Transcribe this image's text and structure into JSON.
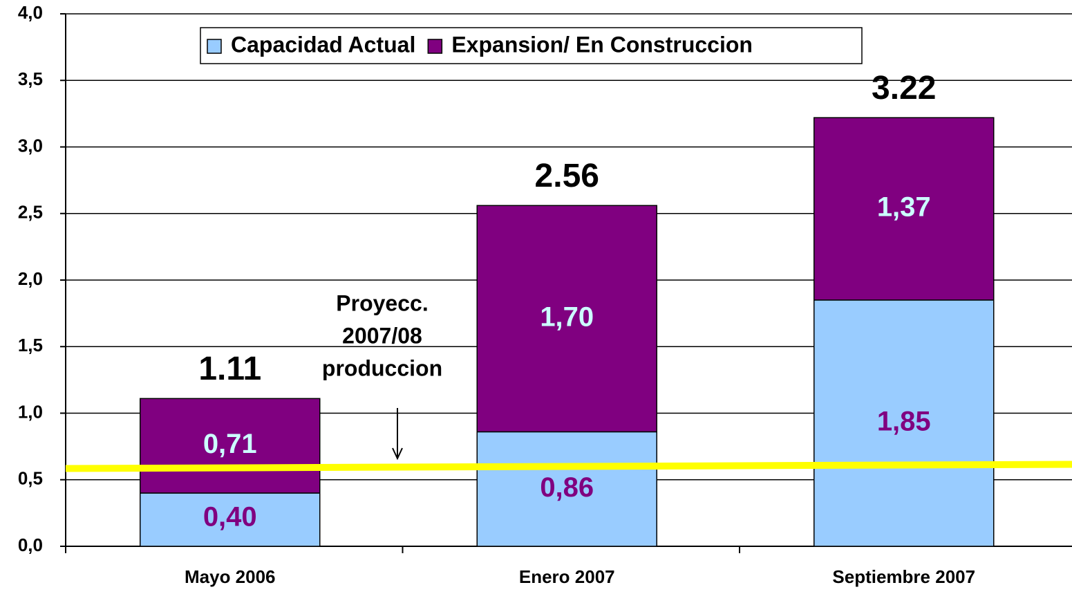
{
  "chart_data": {
    "type": "stacked_bar",
    "categories": [
      "Mayo 2006",
      "Enero 2007",
      "Septiembre 2007"
    ],
    "series": [
      {
        "name": "Capacidad Actual",
        "color": "#99ccff",
        "label_color": "#800080",
        "values": [
          0.4,
          0.86,
          1.85
        ],
        "value_labels": [
          "0,40",
          "0,86",
          "1,85"
        ]
      },
      {
        "name": "Expansion/ En Construccion",
        "color": "#800080",
        "label_color": "#ccffff",
        "values": [
          0.71,
          1.7,
          1.37
        ],
        "value_labels": [
          "0,71",
          "1,70",
          "1,37"
        ]
      }
    ],
    "totals": [
      1.11,
      2.56,
      3.22
    ],
    "ylim": [
      0,
      4
    ],
    "yticks": [
      {
        "value": 0,
        "label": "0,0"
      },
      {
        "value": 0.5,
        "label": "0,5"
      },
      {
        "value": 1,
        "label": "1,0"
      },
      {
        "value": 1.5,
        "label": "1,5"
      },
      {
        "value": 2,
        "label": "2,0"
      },
      {
        "value": 2.5,
        "label": "2,5"
      },
      {
        "value": 3,
        "label": "3,0"
      },
      {
        "value": 3.5,
        "label": "3,5"
      },
      {
        "value": 4,
        "label": "4,0"
      }
    ],
    "grid": true,
    "legend": "top",
    "reference_line": {
      "value": 0.6,
      "color": "#ffff00"
    },
    "annotation": [
      "Proyecc.",
      "2007/08",
      "produccion"
    ]
  }
}
